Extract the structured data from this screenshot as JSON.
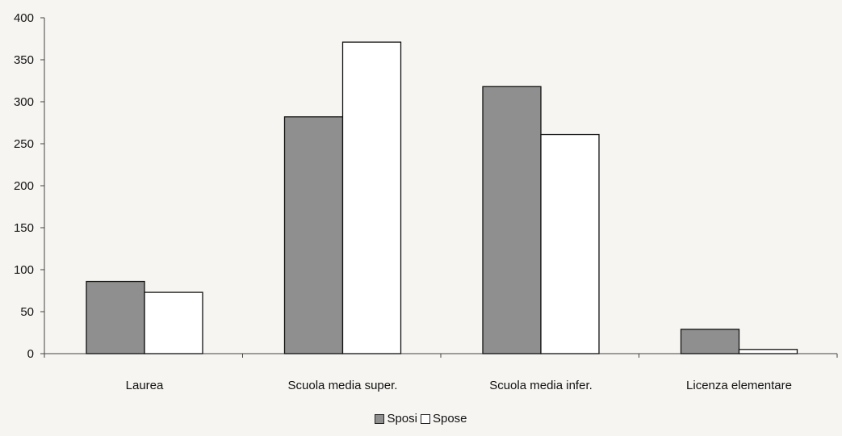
{
  "chart_data": {
    "type": "bar",
    "title": "",
    "xlabel": "",
    "ylabel": "",
    "categories": [
      "Laurea",
      "Scuola media super.",
      "Scuola media infer.",
      "Licenza elementare"
    ],
    "series": [
      {
        "name": "Sposi",
        "values": [
          86,
          282,
          318,
          29
        ],
        "color": "#8f8f8f"
      },
      {
        "name": "Spose",
        "values": [
          73,
          371,
          261,
          5
        ],
        "color": "#ffffff"
      }
    ],
    "ylim": [
      0,
      400
    ],
    "yticks": [
      0,
      50,
      100,
      150,
      200,
      250,
      300,
      350,
      400
    ],
    "grid": false,
    "legend_position": "bottom"
  }
}
